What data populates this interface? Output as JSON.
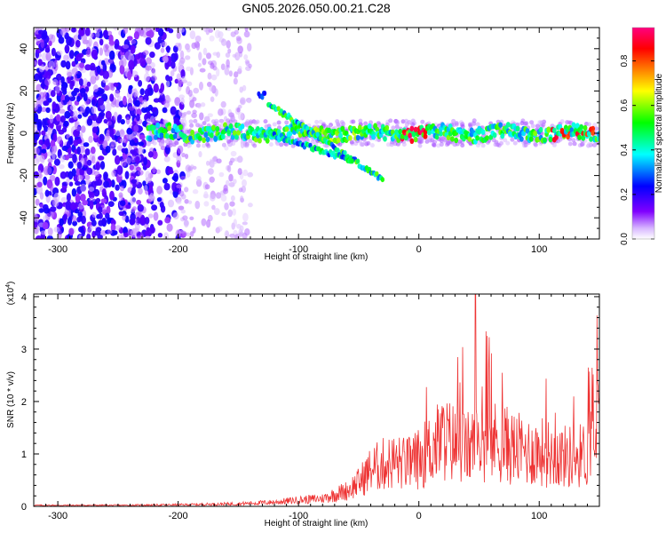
{
  "chart_data": [
    {
      "type": "heatmap",
      "title": "GN05.2026.050.00.21.C28",
      "xlabel": "Height of straight line (km)",
      "ylabel": "Frequency (Hz)",
      "xlim": [
        -320,
        150
      ],
      "ylim": [
        -50,
        50
      ],
      "xticks": [
        -300,
        -200,
        -100,
        0,
        100
      ],
      "yticks": [
        -40,
        -20,
        0,
        20,
        40
      ],
      "colorbar": {
        "label": "Normalized spectral amplitude",
        "range": [
          0,
          0.95
        ],
        "ticks": [
          0.0,
          0.2,
          0.4,
          0.6,
          0.8
        ],
        "tick_labels": [
          "0.0",
          "0.2",
          "0.4",
          "0.6",
          "0.8"
        ],
        "colormap": [
          "#ffffff",
          "#8000ff",
          "#0000ff",
          "#00ffff",
          "#00ff00",
          "#ffff00",
          "#ff8000",
          "#ff0000",
          "#ff0080"
        ]
      },
      "features": {
        "noise_region_x": [
          -320,
          -200
        ],
        "main_band": {
          "x": [
            -225,
            150
          ],
          "freq": 0
        },
        "upper_branch": {
          "x": [
            -125,
            -30
          ],
          "freq_start": 14,
          "freq_end": -22
        },
        "lower_branch": {
          "x": [
            -125,
            -55
          ],
          "freq_start": 0,
          "freq_end": -13
        },
        "peak_x": [
          -15,
          10
        ]
      }
    },
    {
      "type": "line",
      "xlabel": "Height of straight line (km)",
      "ylabel": "SNR (10 * v/v)",
      "y_scale_label": "(x10",
      "y_scale_exp": "4",
      "y_scale_close": ")",
      "xlim": [
        -320,
        150
      ],
      "ylim": [
        0,
        4.05
      ],
      "xticks": [
        -300,
        -200,
        -100,
        0,
        100
      ],
      "yticks": [
        0,
        1,
        2,
        3,
        4
      ],
      "color": "#ee3333",
      "series": [
        {
          "x": [
            -320,
            -250,
            -200,
            -150,
            -120,
            -100,
            -80,
            -60,
            -50,
            -40,
            -30,
            -20,
            -10,
            0,
            10,
            20,
            30,
            40,
            50,
            60,
            70,
            80,
            90,
            100,
            110,
            120,
            130,
            140,
            150
          ],
          "values": [
            0.02,
            0.02,
            0.03,
            0.05,
            0.08,
            0.12,
            0.15,
            0.3,
            0.45,
            0.7,
            0.8,
            0.85,
            0.8,
            0.9,
            1.1,
            1.3,
            1.2,
            1.1,
            1.2,
            1.25,
            1.2,
            1.1,
            1.05,
            1.05,
            1.0,
            0.95,
            0.95,
            1.0,
            1.7
          ]
        }
      ],
      "max_peak": {
        "x": 47,
        "y": 4.05
      }
    }
  ]
}
